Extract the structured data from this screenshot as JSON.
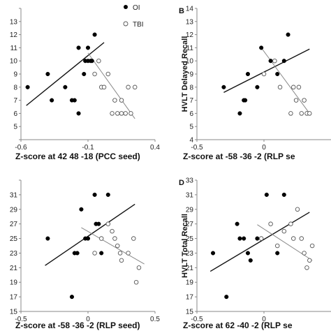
{
  "legend": {
    "oi": "OI",
    "tbi": "TBI"
  },
  "chart_data": [
    {
      "type": "scatter",
      "letter": "",
      "xlabel": "Z-score at 42 48 -18 (PCC seed)",
      "ylabel": "",
      "xlim": [
        -0.6,
        0.4
      ],
      "ylim": [
        4,
        14
      ],
      "xticks": [
        -0.6,
        -0.1,
        0.4
      ],
      "xtick_labels": [
        "-0.6",
        "-0.1",
        "0.4"
      ],
      "yticks": [
        4,
        5,
        6,
        7,
        8,
        9,
        10,
        11,
        12,
        13,
        14
      ],
      "ytick_labels": [
        "",
        "5",
        "6",
        "7",
        "8",
        "9",
        "10",
        "11",
        "12",
        "13",
        ""
      ],
      "series": [
        {
          "name": "OI",
          "marker": "filled",
          "x": [
            -0.55,
            -0.4,
            -0.37,
            -0.27,
            -0.22,
            -0.2,
            -0.17,
            -0.17,
            -0.13,
            -0.12,
            -0.1,
            -0.1,
            -0.08,
            -0.07,
            -0.05
          ],
          "y": [
            8,
            9,
            7,
            8,
            7,
            7,
            6,
            11,
            9,
            10,
            11,
            10,
            10,
            10,
            12
          ]
        },
        {
          "name": "TBI",
          "marker": "open",
          "x": [
            -0.05,
            -0.02,
            0.0,
            0.02,
            0.05,
            0.08,
            0.1,
            0.12,
            0.15,
            0.15,
            0.18,
            0.2,
            0.22,
            0.25
          ],
          "y": [
            9,
            10,
            8,
            8,
            9,
            6,
            7,
            6,
            6,
            7,
            6,
            8,
            6,
            8
          ]
        }
      ],
      "fit_lines": [
        {
          "series": "OI",
          "x": [
            -0.56,
            0.02
          ],
          "y": [
            6.6,
            11.4
          ]
        },
        {
          "series": "TBI",
          "x": [
            -0.1,
            0.25
          ],
          "y": [
            10.6,
            5.6
          ]
        }
      ]
    },
    {
      "type": "scatter",
      "letter": "B",
      "xlabel": "Z-score at -58 -36 -2 (RLP se",
      "ylabel": "HVLT Delayed Recall",
      "xlim": [
        -0.5,
        0.5
      ],
      "ylim": [
        4,
        14
      ],
      "xticks": [
        -0.5,
        0.0
      ],
      "xtick_labels": [
        "-0.5",
        "0"
      ],
      "yticks": [
        4,
        5,
        6,
        7,
        8,
        9,
        10,
        11,
        12,
        13,
        14
      ],
      "ytick_labels": [
        "4",
        "5",
        "6",
        "7",
        "8",
        "9",
        "10",
        "11",
        "12",
        "13",
        "14"
      ],
      "series": [
        {
          "name": "OI",
          "marker": "filled",
          "x": [
            -0.3,
            -0.18,
            -0.15,
            -0.14,
            -0.12,
            -0.05,
            -0.02,
            0.05,
            0.1,
            0.15,
            0.18
          ],
          "y": [
            8,
            6,
            7,
            7,
            9,
            8,
            11,
            10,
            9,
            10,
            12
          ]
        },
        {
          "name": "TBI",
          "marker": "open",
          "x": [
            0.0,
            0.08,
            0.12,
            0.2,
            0.22,
            0.24,
            0.26,
            0.28,
            0.3,
            0.32,
            0.34
          ],
          "y": [
            9,
            10,
            8,
            6,
            8,
            7,
            8,
            6,
            7,
            6,
            6
          ]
        }
      ],
      "fit_lines": [
        {
          "series": "OI",
          "x": [
            -0.3,
            0.34
          ],
          "y": [
            7.6,
            10.9
          ]
        },
        {
          "series": "TBI",
          "x": [
            -0.02,
            0.34
          ],
          "y": [
            11.0,
            6.0
          ]
        }
      ]
    },
    {
      "type": "scatter",
      "letter": "",
      "xlabel": "Z-score at -58 -36 -2 (RLP seed)",
      "ylabel": "",
      "xlim": [
        -0.5,
        0.5
      ],
      "ylim": [
        15,
        33
      ],
      "xticks": [
        -0.5,
        0.0,
        0.5
      ],
      "xtick_labels": [
        "-0.5",
        "0",
        "0.5"
      ],
      "yticks": [
        15,
        17,
        19,
        21,
        23,
        25,
        27,
        29,
        31,
        33
      ],
      "ytick_labels": [
        "15",
        "17",
        "19",
        "21",
        "23",
        "25",
        "27",
        "29",
        "31",
        ""
      ],
      "series": [
        {
          "name": "OI",
          "marker": "filled",
          "x": [
            -0.3,
            -0.12,
            -0.1,
            -0.08,
            -0.05,
            -0.02,
            0.0,
            0.05,
            0.06,
            0.08,
            0.1,
            0.15
          ],
          "y": [
            25,
            17,
            23,
            23,
            29,
            25,
            25,
            31,
            27,
            27,
            23,
            31
          ]
        },
        {
          "name": "TBI",
          "marker": "open",
          "x": [
            0.05,
            0.1,
            0.15,
            0.18,
            0.2,
            0.22,
            0.24,
            0.25,
            0.3,
            0.34,
            0.36,
            0.38
          ],
          "y": [
            23,
            25,
            27,
            26,
            25,
            24,
            23,
            22,
            23,
            25,
            19,
            21
          ]
        }
      ],
      "fit_lines": [
        {
          "series": "OI",
          "x": [
            -0.32,
            0.35
          ],
          "y": [
            21.3,
            29.7
          ]
        },
        {
          "series": "TBI",
          "x": [
            -0.05,
            0.42
          ],
          "y": [
            26.5,
            21.5
          ]
        }
      ]
    },
    {
      "type": "scatter",
      "letter": "D",
      "xlabel": "Z-score at 62 -40 -2 (RLP se",
      "ylabel": "HVLT Total Recall",
      "xlim": [
        -0.5,
        0.5
      ],
      "ylim": [
        15,
        33
      ],
      "xticks": [
        -0.5,
        0.0
      ],
      "xtick_labels": [
        "-0.5",
        "0"
      ],
      "yticks": [
        15,
        17,
        19,
        21,
        23,
        25,
        27,
        29,
        31,
        33
      ],
      "ytick_labels": [
        "15",
        "17",
        "19",
        "21",
        "23",
        "25",
        "27",
        "29",
        "31",
        "33"
      ],
      "series": [
        {
          "name": "OI",
          "marker": "filled",
          "x": [
            -0.38,
            -0.28,
            -0.2,
            -0.18,
            -0.15,
            -0.12,
            -0.1,
            -0.05,
            0.02,
            0.1,
            0.15
          ],
          "y": [
            23,
            17,
            27,
            25,
            25,
            23,
            22,
            25,
            31,
            23,
            31
          ]
        },
        {
          "name": "TBI",
          "marker": "open",
          "x": [
            -0.02,
            0.05,
            0.1,
            0.15,
            0.2,
            0.22,
            0.25,
            0.28,
            0.3,
            0.32,
            0.34,
            0.36
          ],
          "y": [
            25,
            27,
            24,
            26,
            27,
            25,
            29,
            25,
            23,
            21,
            22,
            24
          ]
        }
      ],
      "fit_lines": [
        {
          "series": "OI",
          "x": [
            -0.4,
            0.34
          ],
          "y": [
            20.5,
            28.6
          ]
        },
        {
          "series": "TBI",
          "x": [
            -0.05,
            0.36
          ],
          "y": [
            26.9,
            22.0
          ]
        }
      ]
    }
  ]
}
